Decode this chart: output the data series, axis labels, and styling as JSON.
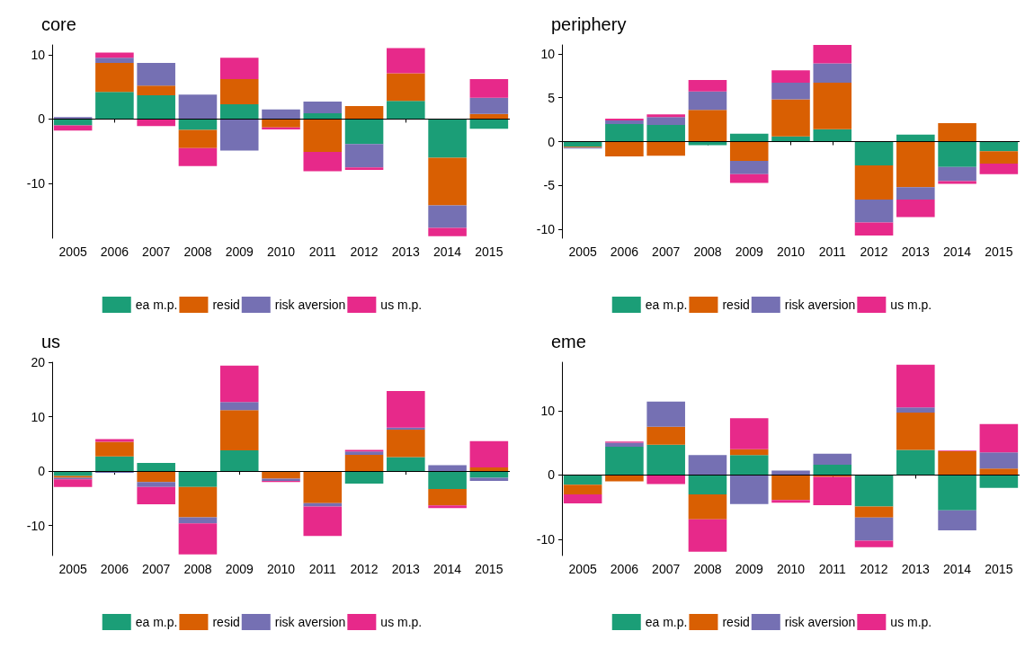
{
  "chart_data": [
    {
      "type": "bar",
      "title": "core",
      "categories": [
        "2005",
        "2006",
        "2007",
        "2008",
        "2009",
        "2010",
        "2011",
        "2012",
        "2013",
        "2014",
        "2015"
      ],
      "stacked": true,
      "ylim": [
        -18.5,
        11.5
      ],
      "yticks": [
        -10,
        0,
        10
      ],
      "legend": "bottom",
      "ref_lines": [
        {
          "axis": "y",
          "value": 0,
          "color": "#000000"
        }
      ],
      "series": [
        {
          "name": "ea m.p.",
          "color": "#1b9e77",
          "values": [
            -1.0,
            4.2,
            3.7,
            -1.7,
            2.3,
            0,
            0.9,
            -3.9,
            2.8,
            -6.0,
            -1.5
          ]
        },
        {
          "name": "resid",
          "color": "#d95f02",
          "values": [
            0,
            4.5,
            1.5,
            -2.8,
            3.9,
            -1.3,
            -5.1,
            2.0,
            4.3,
            -7.4,
            0.8
          ]
        },
        {
          "name": "risk aversion",
          "color": "#7570b3",
          "values": [
            0.3,
            0.8,
            3.5,
            3.8,
            -4.9,
            1.5,
            1.8,
            -3.6,
            0,
            -3.5,
            2.5
          ]
        },
        {
          "name": "us m.p.",
          "color": "#e7298a",
          "values": [
            -0.8,
            0.8,
            -1.1,
            -2.8,
            3.3,
            -0.3,
            -3.0,
            -0.4,
            3.9,
            -1.3,
            2.9
          ]
        }
      ]
    },
    {
      "type": "bar",
      "title": "periphery",
      "categories": [
        "2005",
        "2006",
        "2007",
        "2008",
        "2009",
        "2010",
        "2011",
        "2012",
        "2013",
        "2014",
        "2015"
      ],
      "stacked": true,
      "ylim": [
        -11,
        11
      ],
      "yticks": [
        -10,
        -5,
        0,
        5,
        10
      ],
      "legend": "bottom",
      "ref_lines": [
        {
          "axis": "y",
          "value": 0,
          "color": "#000000"
        }
      ],
      "series": [
        {
          "name": "ea m.p.",
          "color": "#1b9e77",
          "values": [
            -0.6,
            2.0,
            1.9,
            -0.4,
            0.9,
            0.6,
            1.4,
            -2.7,
            0.8,
            -2.9,
            -1.1
          ]
        },
        {
          "name": "resid",
          "color": "#d95f02",
          "values": [
            -0.1,
            -1.7,
            -1.6,
            3.6,
            -2.2,
            4.2,
            5.3,
            -3.9,
            -5.2,
            2.1,
            -1.4
          ]
        },
        {
          "name": "risk aversion",
          "color": "#7570b3",
          "values": [
            -0.1,
            0.4,
            0.9,
            2.1,
            -1.5,
            1.9,
            2.2,
            -2.6,
            -1.4,
            -1.6,
            0
          ]
        },
        {
          "name": "us m.p.",
          "color": "#e7298a",
          "values": [
            0,
            0.2,
            0.3,
            1.3,
            -1.0,
            1.4,
            2.1,
            -1.5,
            -2.0,
            -0.3,
            -1.2
          ]
        }
      ]
    },
    {
      "type": "bar",
      "title": "us",
      "categories": [
        "2005",
        "2006",
        "2007",
        "2008",
        "2009",
        "2010",
        "2011",
        "2012",
        "2013",
        "2014",
        "2015"
      ],
      "stacked": true,
      "ylim": [
        -15.5,
        20
      ],
      "yticks": [
        -10,
        0,
        10,
        20
      ],
      "legend": "bottom",
      "ref_lines": [
        {
          "axis": "y",
          "value": 0,
          "color": "#000000"
        }
      ],
      "series": [
        {
          "name": "ea m.p.",
          "color": "#1b9e77",
          "values": [
            -0.9,
            2.7,
            1.5,
            -2.9,
            3.8,
            0,
            0,
            -2.3,
            2.6,
            -3.3,
            -1.2
          ]
        },
        {
          "name": "resid",
          "color": "#d95f02",
          "values": [
            -0.3,
            2.7,
            -2.0,
            -5.6,
            7.4,
            -1.4,
            -5.9,
            3.0,
            5.0,
            -3.0,
            0.7
          ]
        },
        {
          "name": "risk aversion",
          "color": "#7570b3",
          "values": [
            -0.3,
            -0.3,
            -0.9,
            -1.1,
            1.5,
            -0.4,
            -0.6,
            0.6,
            0.4,
            1.1,
            -0.6
          ]
        },
        {
          "name": "us m.p.",
          "color": "#e7298a",
          "values": [
            -1.4,
            0.5,
            -3.2,
            -5.7,
            6.7,
            -0.2,
            -5.4,
            0.3,
            6.7,
            -0.5,
            4.8
          ]
        }
      ]
    },
    {
      "type": "bar",
      "title": "eme",
      "categories": [
        "2005",
        "2006",
        "2007",
        "2008",
        "2009",
        "2010",
        "2011",
        "2012",
        "2013",
        "2014",
        "2015"
      ],
      "stacked": true,
      "ylim": [
        -12.5,
        17.5
      ],
      "yticks": [
        -10,
        0,
        10
      ],
      "legend": "bottom",
      "ref_lines": [
        {
          "axis": "y",
          "value": 0,
          "color": "#000000"
        }
      ],
      "series": [
        {
          "name": "ea m.p.",
          "color": "#1b9e77",
          "values": [
            -1.5,
            4.4,
            4.7,
            -3.0,
            3.1,
            0,
            1.6,
            -4.9,
            3.9,
            -5.5,
            -2.0
          ]
        },
        {
          "name": "resid",
          "color": "#d95f02",
          "values": [
            -1.5,
            -1.0,
            2.8,
            -3.9,
            0.9,
            -3.9,
            -0.3,
            -1.7,
            5.8,
            3.7,
            1.0
          ]
        },
        {
          "name": "risk aversion",
          "color": "#7570b3",
          "values": [
            0,
            0.6,
            3.9,
            3.1,
            -4.5,
            0.7,
            1.7,
            -3.6,
            0.8,
            -3.1,
            2.5
          ]
        },
        {
          "name": "us m.p.",
          "color": "#e7298a",
          "values": [
            -1.4,
            0.2,
            -1.4,
            -5.0,
            4.8,
            -0.4,
            -4.4,
            -1.0,
            6.6,
            0.1,
            4.4
          ]
        }
      ]
    }
  ]
}
